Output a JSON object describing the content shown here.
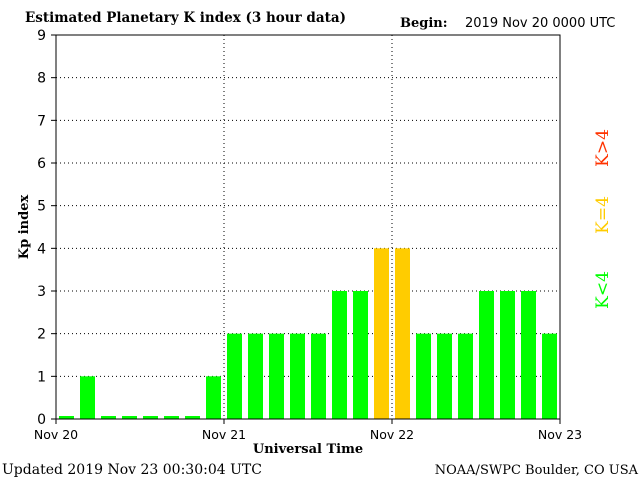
{
  "chart_data": {
    "type": "bar",
    "title": "Estimated Planetary K index (3 hour data)",
    "begin_label": "Begin:",
    "begin_value": "2019 Nov 20 0000 UTC",
    "ylabel": "Kp index",
    "xlabel": "Universal Time",
    "ylim": [
      0,
      9
    ],
    "yticks": [
      "0",
      "1",
      "2",
      "3",
      "4",
      "5",
      "6",
      "7",
      "8",
      "9"
    ],
    "xticks": [
      "Nov 20",
      "Nov 21",
      "Nov 22",
      "Nov 23"
    ],
    "grid": true,
    "values": [
      0,
      1,
      0,
      0,
      0,
      0,
      0,
      1,
      2,
      2,
      2,
      2,
      2,
      3,
      3,
      4,
      4,
      2,
      2,
      2,
      3,
      3,
      3,
      2
    ],
    "colors": {
      "below_4": "#00ff00",
      "equal_4": "#ffcc00",
      "above_4": "#ff3300"
    },
    "legend": {
      "above": "K>4",
      "equal": "K=4",
      "below": "K<4"
    },
    "updated_text": "Updated 2019 Nov 23 00:30:04 UTC",
    "credit": "NOAA/SWPC Boulder, CO USA"
  }
}
